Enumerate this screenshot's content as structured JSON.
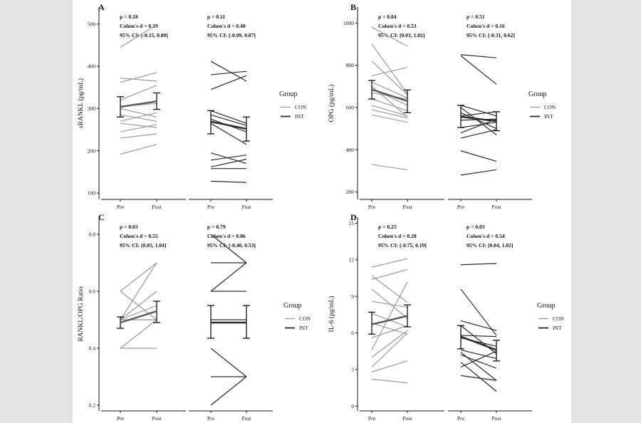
{
  "colors": {
    "con": "#9a9a9a",
    "int": "#2a2a2a",
    "mean": "#5a5a5a",
    "axis": "#111111",
    "background": "#e3e3e3",
    "panel": "#ffffff"
  },
  "legend": {
    "title": "Group",
    "items": [
      "CON",
      "INT"
    ]
  },
  "chart_data": [
    {
      "type": "line",
      "panel_label": "A",
      "ylabel": "sRANKL (pg/mL)",
      "ylim": [
        85,
        540
      ],
      "yticks": [
        100,
        200,
        300,
        400,
        500
      ],
      "x_categories": [
        "Pre",
        "Post"
      ],
      "grid": false,
      "facets": [
        {
          "group": "CON",
          "stats": [
            "p = 0.18",
            "Cohen's d = 0.33",
            "95% CI: [-0.15, 0.80]"
          ],
          "lines": [
            [
              445,
              498
            ],
            [
              372,
              365
            ],
            [
              362,
              385
            ],
            [
              320,
              355
            ],
            [
              305,
              312
            ],
            [
              300,
              280
            ],
            [
              285,
              270
            ],
            [
              270,
              290
            ],
            [
              265,
              255
            ],
            [
              245,
              262
            ],
            [
              230,
              240
            ],
            [
              192,
              215
            ]
          ],
          "mean": {
            "values": [
              304,
              317
            ],
            "err_lo": [
              280,
              298
            ],
            "err_hi": [
              328,
              337
            ]
          }
        },
        {
          "group": "INT",
          "stats": [
            "p = 0.11",
            "Cohen's d = 0.40",
            "95% CI: [-0.09, 0.87]"
          ],
          "lines": [
            [
              412,
              365
            ],
            [
              380,
              388
            ],
            [
              345,
              378
            ],
            [
              295,
              265
            ],
            [
              285,
              260
            ],
            [
              275,
              245
            ],
            [
              265,
              215
            ],
            [
              195,
              170
            ],
            [
              178,
              190
            ],
            [
              162,
              180
            ],
            [
              158,
              158
            ],
            [
              128,
              125
            ]
          ],
          "mean": {
            "values": [
              269,
              252
            ],
            "err_lo": [
              240,
              223
            ],
            "err_hi": [
              295,
              280
            ]
          }
        }
      ]
    },
    {
      "type": "line",
      "panel_label": "B",
      "ylabel": "OPG (pg/mL)",
      "ylim": [
        165,
        1075
      ],
      "yticks": [
        200,
        400,
        600,
        800,
        1000
      ],
      "x_categories": [
        "Pre",
        "Post"
      ],
      "grid": false,
      "facets": [
        {
          "group": "CON",
          "stats": [
            "p = 0.04",
            "Cohen's d = 0.53",
            "95% CI: [0.03, 1.02]"
          ],
          "lines": [
            [
              980,
              890
            ],
            [
              900,
              665
            ],
            [
              820,
              660
            ],
            [
              750,
              790
            ],
            [
              720,
              645
            ],
            [
              700,
              555
            ],
            [
              690,
              610
            ],
            [
              670,
              640
            ],
            [
              640,
              585
            ],
            [
              610,
              560
            ],
            [
              590,
              550
            ],
            [
              565,
              530
            ],
            [
              330,
              305
            ]
          ],
          "mean": {
            "values": [
              685,
              630
            ],
            "err_lo": [
              640,
              575
            ],
            "err_hi": [
              728,
              683
            ]
          }
        },
        {
          "group": "INT",
          "stats": [
            "p = 0.51",
            "Cohen's d = 0.16",
            "95% CI: [-0.31, 0.62]"
          ],
          "lines": [
            [
              850,
              835
            ],
            [
              845,
              710
            ],
            [
              610,
              560
            ],
            [
              600,
              470
            ],
            [
              575,
              500
            ],
            [
              560,
              580
            ],
            [
              540,
              545
            ],
            [
              505,
              530
            ],
            [
              480,
              545
            ],
            [
              455,
              495
            ],
            [
              395,
              345
            ],
            [
              280,
              305
            ]
          ],
          "mean": {
            "values": [
              556,
              535
            ],
            "err_lo": [
              505,
              490
            ],
            "err_hi": [
              610,
              580
            ]
          }
        }
      ]
    },
    {
      "type": "line",
      "panel_label": "C",
      "ylabel": "RANKL/OPG Ratio",
      "ylim": [
        0.18,
        0.86
      ],
      "yticks": [
        0.2,
        0.4,
        0.6,
        0.8
      ],
      "x_categories": [
        "Pre",
        "Post"
      ],
      "grid": false,
      "facets": [
        {
          "group": "CON",
          "stats": [
            "p = 0.03",
            "Cohen's d = 0.55",
            "95% CI: [0.05, 1.04]"
          ],
          "lines": [
            [
              0.6,
              0.5
            ],
            [
              0.6,
              0.7
            ],
            [
              0.5,
              0.7
            ],
            [
              0.5,
              0.6
            ],
            [
              0.5,
              0.5
            ],
            [
              0.5,
              0.5
            ],
            [
              0.4,
              0.5
            ],
            [
              0.4,
              0.4
            ],
            [
              0.5,
              0.55
            ]
          ],
          "mean": {
            "values": [
              0.49,
              0.53
            ],
            "err_lo": [
              0.47,
              0.49
            ],
            "err_hi": [
              0.51,
              0.565
            ]
          }
        },
        {
          "group": "INT",
          "stats": [
            "p = 0.79",
            "Cohen's d = 0.06",
            "95% CI: [-0.40, 0.53]"
          ],
          "lines": [
            [
              0.8,
              0.7
            ],
            [
              0.7,
              0.7
            ],
            [
              0.6,
              0.7
            ],
            [
              0.6,
              0.6
            ],
            [
              0.5,
              0.5
            ],
            [
              0.4,
              0.3
            ],
            [
              0.3,
              0.3
            ],
            [
              0.2,
              0.3
            ]
          ],
          "mean": {
            "values": [
              0.49,
              0.49
            ],
            "err_lo": [
              0.435,
              0.435
            ],
            "err_hi": [
              0.55,
              0.55
            ]
          }
        }
      ]
    },
    {
      "type": "line",
      "panel_label": "D",
      "ylabel": "IL-6 (pg/mL)",
      "ylim": [
        -0.4,
        15.5
      ],
      "yticks": [
        0,
        3,
        6,
        9,
        12,
        15
      ],
      "x_categories": [
        "Pre",
        "Post"
      ],
      "grid": false,
      "facets": [
        {
          "group": "CON",
          "stats": [
            "p = 0.25",
            "Cohen's d = 0.28",
            "95% CI: [-0.75, 0.19]"
          ],
          "lines": [
            [
              11.4,
              12.1
            ],
            [
              10.7,
              8.5
            ],
            [
              10.4,
              11.2
            ],
            [
              9.6,
              7.2
            ],
            [
              8.6,
              8.1
            ],
            [
              7.6,
              6.5
            ],
            [
              6.8,
              5.9
            ],
            [
              5.6,
              6.6
            ],
            [
              4.6,
              10.2
            ],
            [
              4.0,
              6.2
            ],
            [
              3.2,
              6.0
            ],
            [
              2.8,
              3.7
            ],
            [
              2.2,
              1.9
            ]
          ],
          "mean": {
            "values": [
              6.7,
              7.4
            ],
            "err_lo": [
              5.9,
              6.5
            ],
            "err_hi": [
              7.7,
              8.3
            ]
          }
        },
        {
          "group": "INT",
          "stats": [
            "p = 0.03",
            "Cohen's d = 0.54",
            "95% CI: [0.04, 1.02]"
          ],
          "lines": [
            [
              11.6,
              11.7
            ],
            [
              9.6,
              5.8
            ],
            [
              7.0,
              6.2
            ],
            [
              6.6,
              4.3
            ],
            [
              5.8,
              5.7
            ],
            [
              5.6,
              4.9
            ],
            [
              4.6,
              3.9
            ],
            [
              4.4,
              2.1
            ],
            [
              4.2,
              3.1
            ],
            [
              3.6,
              1.2
            ],
            [
              3.2,
              4.5
            ],
            [
              2.5,
              2.1
            ]
          ],
          "mean": {
            "values": [
              5.7,
              4.6
            ],
            "err_lo": [
              4.7,
              3.7
            ],
            "err_hi": [
              6.6,
              5.4
            ]
          }
        }
      ]
    }
  ]
}
